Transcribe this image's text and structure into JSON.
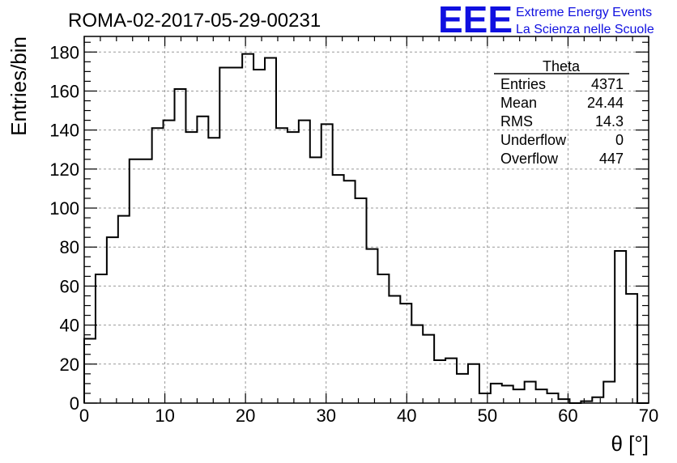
{
  "chart_data": {
    "type": "bar",
    "title": "ROMA-02-2017-05-29-00231",
    "xlabel": "θ [°]",
    "ylabel": "Entries/bin",
    "xlim": [
      0,
      70
    ],
    "ylim": [
      0,
      188
    ],
    "x_ticks": [
      0,
      10,
      20,
      30,
      40,
      50,
      60,
      70
    ],
    "y_ticks": [
      0,
      20,
      40,
      60,
      80,
      100,
      120,
      140,
      160,
      180
    ],
    "grid": true,
    "bin_width": 1.4,
    "values": [
      33,
      66,
      85,
      96,
      125,
      125,
      141,
      145,
      161,
      139,
      147,
      136,
      172,
      172,
      179,
      171,
      177,
      141,
      139,
      145,
      126,
      143,
      117,
      114,
      105,
      79,
      66,
      55,
      51,
      40,
      35,
      22,
      23,
      15,
      20,
      5,
      10,
      9,
      7,
      11,
      7,
      5,
      2,
      0,
      1,
      3,
      11,
      78,
      56,
      0
    ],
    "stats": {
      "title": "Theta",
      "rows": [
        {
          "label": "Entries",
          "value": "4371"
        },
        {
          "label": "Mean",
          "value": "24.44"
        },
        {
          "label": "RMS",
          "value": "14.3"
        },
        {
          "label": "Underflow",
          "value": "0"
        },
        {
          "label": "Overflow",
          "value": "447"
        }
      ]
    }
  },
  "branding": {
    "logo": "EEE",
    "line1": "Extreme Energy Events",
    "line2": "La Scienza nelle Scuole"
  },
  "colors": {
    "histogram": "#000000",
    "grid": "#999999",
    "brand": "#1010e0"
  }
}
